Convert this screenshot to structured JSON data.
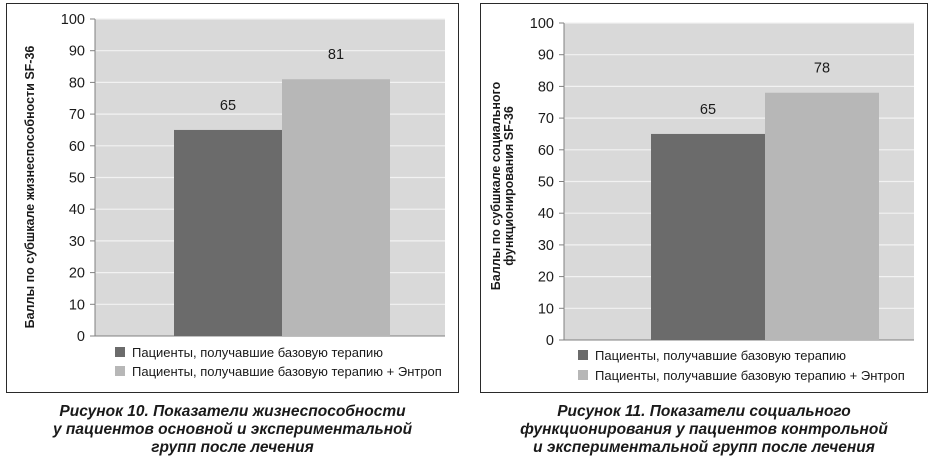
{
  "colors": {
    "plot_bg": "#d9d9d9",
    "grid": "#f2f2f2",
    "axis": "#808080",
    "series_base": "#6b6b6b",
    "series_entrop": "#b7b7b7"
  },
  "chart_data": [
    {
      "type": "bar",
      "categories": [
        ""
      ],
      "series": [
        {
          "name": "Пациенты, получавшие базовую терапию",
          "values": [
            65
          ]
        },
        {
          "name": "Пациенты, получавшие базовую терапию + Энтроп",
          "values": [
            81
          ]
        }
      ],
      "ylabel_lines": [
        "Баллы по субшкале жизнеспособности SF-36"
      ],
      "ylim": [
        0,
        100
      ],
      "yticks": [
        "0",
        "10",
        "20",
        "30",
        "40",
        "50",
        "60",
        "70",
        "80",
        "90",
        "100"
      ],
      "data_labels": [
        "65",
        "81"
      ],
      "legend_position": "bottom",
      "grid": true
    },
    {
      "type": "bar",
      "categories": [
        ""
      ],
      "series": [
        {
          "name": "Пациенты, получавшие базовую терапию",
          "values": [
            65
          ]
        },
        {
          "name": "Пациенты, получавшие базовую терапию + Энтроп",
          "values": [
            78
          ]
        }
      ],
      "ylabel_lines": [
        "Баллы по субшкале социального",
        "функционирования SF-36"
      ],
      "ylim": [
        0,
        100
      ],
      "yticks": [
        "0",
        "10",
        "20",
        "30",
        "40",
        "50",
        "60",
        "70",
        "80",
        "90",
        "100"
      ],
      "data_labels": [
        "65",
        "78"
      ],
      "legend_position": "bottom",
      "grid": true
    }
  ],
  "captions": [
    [
      "Рисунок 10. Показатели жизнеспособности",
      "у пациентов основной и экспериментальной",
      "групп после лечения"
    ],
    [
      "Рисунок 11. Показатели социального",
      "функционирования у пациентов контрольной",
      "и экспериментальной групп после лечения"
    ]
  ]
}
